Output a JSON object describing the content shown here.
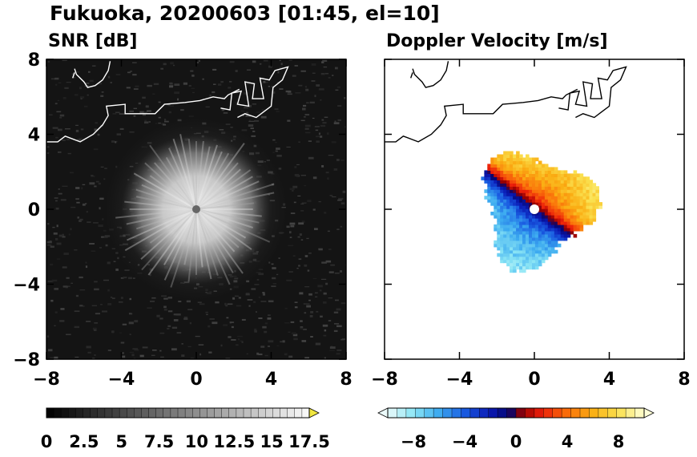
{
  "figure_title": "Fukuoka, 20200603 [01:45, el=10]",
  "colors": {
    "snr_background": "#141414",
    "snr_max": "#f2f2f2",
    "coastline_on_dark": "#ffffff",
    "coastline_on_light": "#000000",
    "radar_center": "#666666"
  },
  "chart_data": [
    {
      "type": "heatmap",
      "title": "SNR [dB]",
      "xlabel": "",
      "ylabel": "",
      "xlim": [
        -8,
        8
      ],
      "ylim": [
        -8,
        8
      ],
      "xticks": [
        "-8",
        "-4",
        "0",
        "4",
        "8"
      ],
      "yticks": [
        "-8",
        "-4",
        "0",
        "4",
        "8"
      ],
      "grid": false,
      "field": {
        "center": [
          0,
          0
        ],
        "bright_core_radius": 4,
        "speckle_extent": 7,
        "peak_snr": 17.5,
        "background_snr": 1.5
      },
      "colorbar": {
        "min": 0,
        "max": 17.5,
        "extend": "max",
        "tick_labels": [
          "0",
          "2.5",
          "5",
          "7.5",
          "10",
          "12.5",
          "15",
          "17.5"
        ],
        "tick_values": [
          0,
          2.5,
          5,
          7.5,
          10,
          12.5,
          15,
          17.5
        ]
      }
    },
    {
      "type": "heatmap",
      "title": "Doppler Velocity [m/s]",
      "xlabel": "",
      "ylabel": "",
      "xlim": [
        -8,
        8
      ],
      "ylim": [
        -8,
        8
      ],
      "xticks": [
        "-8",
        "-4",
        "0",
        "4",
        "8"
      ],
      "yticks": [
        "-8",
        "-4",
        "0",
        "4",
        "8"
      ],
      "grid": false,
      "field": {
        "center": [
          0,
          0
        ],
        "data_radius": 3.4,
        "receding_direction": "north-east",
        "approaching_direction": "south-west",
        "max_velocity": 8,
        "min_velocity": -8
      },
      "colorbar": {
        "min": -10,
        "max": 10,
        "extend": "both",
        "tick_labels": [
          "-8",
          "-4",
          "0",
          "4",
          "8"
        ],
        "tick_values": [
          -8,
          -4,
          0,
          4,
          8
        ]
      }
    }
  ],
  "coastline": [
    [
      [
        -8,
        3.6
      ],
      [
        -7.4,
        3.6
      ],
      [
        -7.0,
        3.9
      ],
      [
        -6.2,
        3.6
      ],
      [
        -5.5,
        4.0
      ],
      [
        -5.0,
        4.5
      ],
      [
        -4.7,
        5.0
      ],
      [
        -4.8,
        5.5
      ],
      [
        -3.8,
        5.6
      ],
      [
        -3.8,
        5.1
      ],
      [
        -2.2,
        5.1
      ],
      [
        -1.7,
        5.6
      ],
      [
        -0.6,
        5.7
      ],
      [
        0.2,
        5.8
      ],
      [
        0.9,
        6.0
      ],
      [
        1.5,
        5.9
      ],
      [
        1.7,
        6.1
      ],
      [
        2.3,
        6.4
      ]
    ],
    [
      [
        1.3,
        5.4
      ],
      [
        1.8,
        5.3
      ],
      [
        1.9,
        6.2
      ],
      [
        2.4,
        6.3
      ],
      [
        2.2,
        5.6
      ],
      [
        2.8,
        5.5
      ],
      [
        2.6,
        6.8
      ],
      [
        3.1,
        6.7
      ],
      [
        3.0,
        5.9
      ],
      [
        3.6,
        5.9
      ],
      [
        3.4,
        7.0
      ],
      [
        3.9,
        6.9
      ],
      [
        4.2,
        7.4
      ],
      [
        4.9,
        7.6
      ],
      [
        4.6,
        6.9
      ],
      [
        4.1,
        6.5
      ],
      [
        4.0,
        5.5
      ],
      [
        3.6,
        5.2
      ],
      [
        3.2,
        4.9
      ],
      [
        2.6,
        5.1
      ],
      [
        2.2,
        4.9
      ]
    ],
    [
      [
        -6.5,
        7.5
      ],
      [
        -6.4,
        7.2
      ],
      [
        -6.0,
        6.8
      ],
      [
        -5.8,
        6.5
      ],
      [
        -5.4,
        6.6
      ],
      [
        -5.0,
        6.9
      ],
      [
        -4.7,
        7.4
      ],
      [
        -4.6,
        7.9
      ]
    ],
    [
      [
        -6.6,
        7.0
      ],
      [
        -6.5,
        7.3
      ]
    ]
  ]
}
